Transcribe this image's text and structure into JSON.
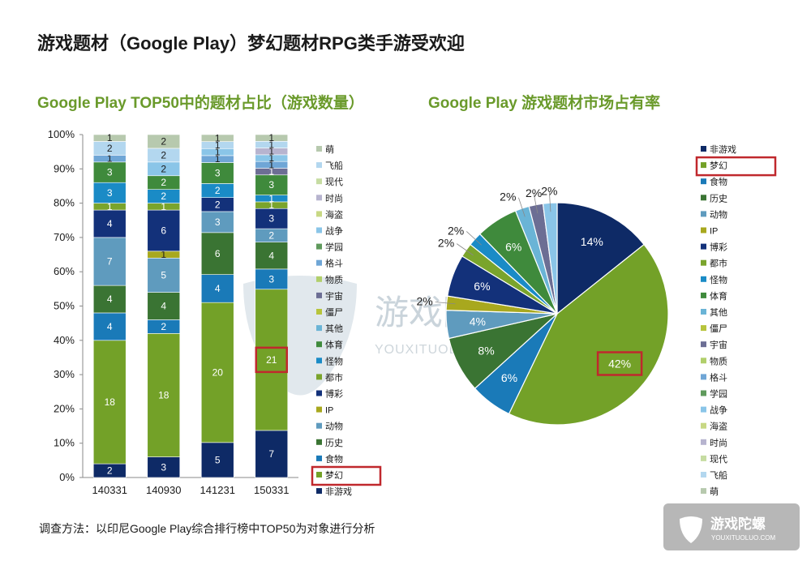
{
  "header": {
    "title": "游戏题材（Google Play）梦幻题材RPG类手游受欢迎",
    "left_subtitle": "Google Play TOP50中的题材占比（游戏数量）",
    "right_subtitle": "Google Play 游戏题材市场占有率",
    "footnote": "调查方法：以印尼Google Play综合排行榜中TOP50为对象进行分析"
  },
  "watermark": {
    "text": "游戏陀螺",
    "sub": "YOUXITUOLUO.COM"
  },
  "logo": {
    "text": "游戏陀螺",
    "sub": "YOUXITUOLUO.COM"
  },
  "colors": {
    "highlight": "#c0282d",
    "subtitle": "#6a9a2b"
  },
  "chart_data": [
    {
      "type": "bar",
      "stacked": "percent",
      "categories": [
        "140331",
        "140930",
        "141231",
        "150331"
      ],
      "ylim": [
        0,
        100
      ],
      "yticks": [
        "0%",
        "10%",
        "20%",
        "30%",
        "40%",
        "50%",
        "60%",
        "70%",
        "80%",
        "90%",
        "100%"
      ],
      "legend_position": "right",
      "highlight": {
        "category": "150331",
        "series": "梦幻"
      },
      "series": [
        {
          "name": "非游戏",
          "color": "#0e2a66",
          "values": [
            2,
            3,
            5,
            7
          ]
        },
        {
          "name": "梦幻",
          "color": "#73a128",
          "values": [
            18,
            18,
            20,
            21
          ]
        },
        {
          "name": "食物",
          "color": "#1a7ab8",
          "values": [
            4,
            2,
            4,
            3
          ]
        },
        {
          "name": "历史",
          "color": "#3a7433",
          "values": [
            4,
            4,
            6,
            4
          ]
        },
        {
          "name": "动物",
          "color": "#5f9bbe",
          "values": [
            7,
            5,
            3,
            2
          ]
        },
        {
          "name": "IP",
          "color": "#a8a81e",
          "values": [
            0,
            1,
            0,
            0
          ]
        },
        {
          "name": "博彩",
          "color": "#13317a",
          "values": [
            4,
            6,
            2,
            3
          ]
        },
        {
          "name": "都市",
          "color": "#7aa42c",
          "values": [
            1,
            1,
            0,
            1
          ]
        },
        {
          "name": "怪物",
          "color": "#1a8bc6",
          "values": [
            3,
            2,
            2,
            1
          ]
        },
        {
          "name": "体育",
          "color": "#3f8a3c",
          "values": [
            3,
            2,
            3,
            3
          ]
        },
        {
          "name": "其他",
          "color": "#6ab4d6",
          "values": [
            0,
            0,
            0,
            0
          ]
        },
        {
          "name": "僵尸",
          "color": "#b7c43c",
          "values": [
            0,
            0,
            0,
            0
          ]
        },
        {
          "name": "宇宙",
          "color": "#6c6e94",
          "values": [
            0,
            0,
            0,
            1
          ]
        },
        {
          "name": "物质",
          "color": "#b1cf6b",
          "values": [
            0,
            0,
            0,
            0
          ]
        },
        {
          "name": "格斗",
          "color": "#6fa6d6",
          "values": [
            1,
            0,
            1,
            1
          ]
        },
        {
          "name": "学园",
          "color": "#5f9a5c",
          "values": [
            0,
            0,
            0,
            0
          ]
        },
        {
          "name": "战争",
          "color": "#8ac5e8",
          "values": [
            0,
            2,
            1,
            1
          ]
        },
        {
          "name": "海盗",
          "color": "#c8d884",
          "values": [
            0,
            0,
            0,
            0
          ]
        },
        {
          "name": "时尚",
          "color": "#b7b4cf",
          "values": [
            0,
            0,
            0,
            1
          ]
        },
        {
          "name": "现代",
          "color": "#c6dca2",
          "values": [
            0,
            0,
            0,
            0
          ]
        },
        {
          "name": "飞船",
          "color": "#b3d7ef",
          "values": [
            2,
            2,
            1,
            1
          ]
        },
        {
          "name": "萌",
          "color": "#b7c9ae",
          "values": [
            1,
            2,
            1,
            1
          ]
        }
      ]
    },
    {
      "type": "pie",
      "legend_position": "right",
      "highlight": {
        "slice": "梦幻"
      },
      "slices": [
        {
          "name": "非游戏",
          "value": 14,
          "label": "14%",
          "color": "#0e2a66"
        },
        {
          "name": "梦幻",
          "value": 42,
          "label": "42%",
          "color": "#73a128"
        },
        {
          "name": "食物",
          "value": 6,
          "label": "6%",
          "color": "#1a7ab8"
        },
        {
          "name": "历史",
          "value": 8,
          "label": "8%",
          "color": "#3a7433"
        },
        {
          "name": "动物",
          "value": 4,
          "label": "4%",
          "color": "#5f9bbe"
        },
        {
          "name": "IP",
          "value": 2,
          "label": "2%",
          "color": "#a8a81e"
        },
        {
          "name": "博彩",
          "value": 6,
          "label": "6%",
          "color": "#13317a"
        },
        {
          "name": "都市",
          "value": 2,
          "label": "2%",
          "color": "#7aa42c"
        },
        {
          "name": "怪物",
          "value": 2,
          "label": "2%",
          "color": "#1a8bc6"
        },
        {
          "name": "体育",
          "value": 6,
          "label": "6%",
          "color": "#3f8a3c"
        },
        {
          "name": "其他",
          "value": 2,
          "label": "2%",
          "color": "#6ab4d6"
        },
        {
          "name": "僵尸",
          "value": 0,
          "color": "#b7c43c"
        },
        {
          "name": "宇宙",
          "value": 2,
          "label": "2%",
          "color": "#6c6e94"
        },
        {
          "name": "物质",
          "value": 0,
          "color": "#b1cf6b"
        },
        {
          "name": "格斗",
          "value": 0,
          "color": "#6fa6d6"
        },
        {
          "name": "学园",
          "value": 0,
          "color": "#5f9a5c"
        },
        {
          "name": "战争",
          "value": 2,
          "label": "2%",
          "color": "#8ac5e8"
        },
        {
          "name": "海盗",
          "value": 0,
          "color": "#c8d884"
        },
        {
          "name": "时尚",
          "value": 0,
          "color": "#b7b4cf"
        },
        {
          "name": "现代",
          "value": 0,
          "color": "#c6dca2"
        },
        {
          "name": "飞船",
          "value": 0,
          "color": "#b3d7ef"
        },
        {
          "name": "萌",
          "value": 0,
          "color": "#b7c9ae"
        }
      ]
    }
  ]
}
